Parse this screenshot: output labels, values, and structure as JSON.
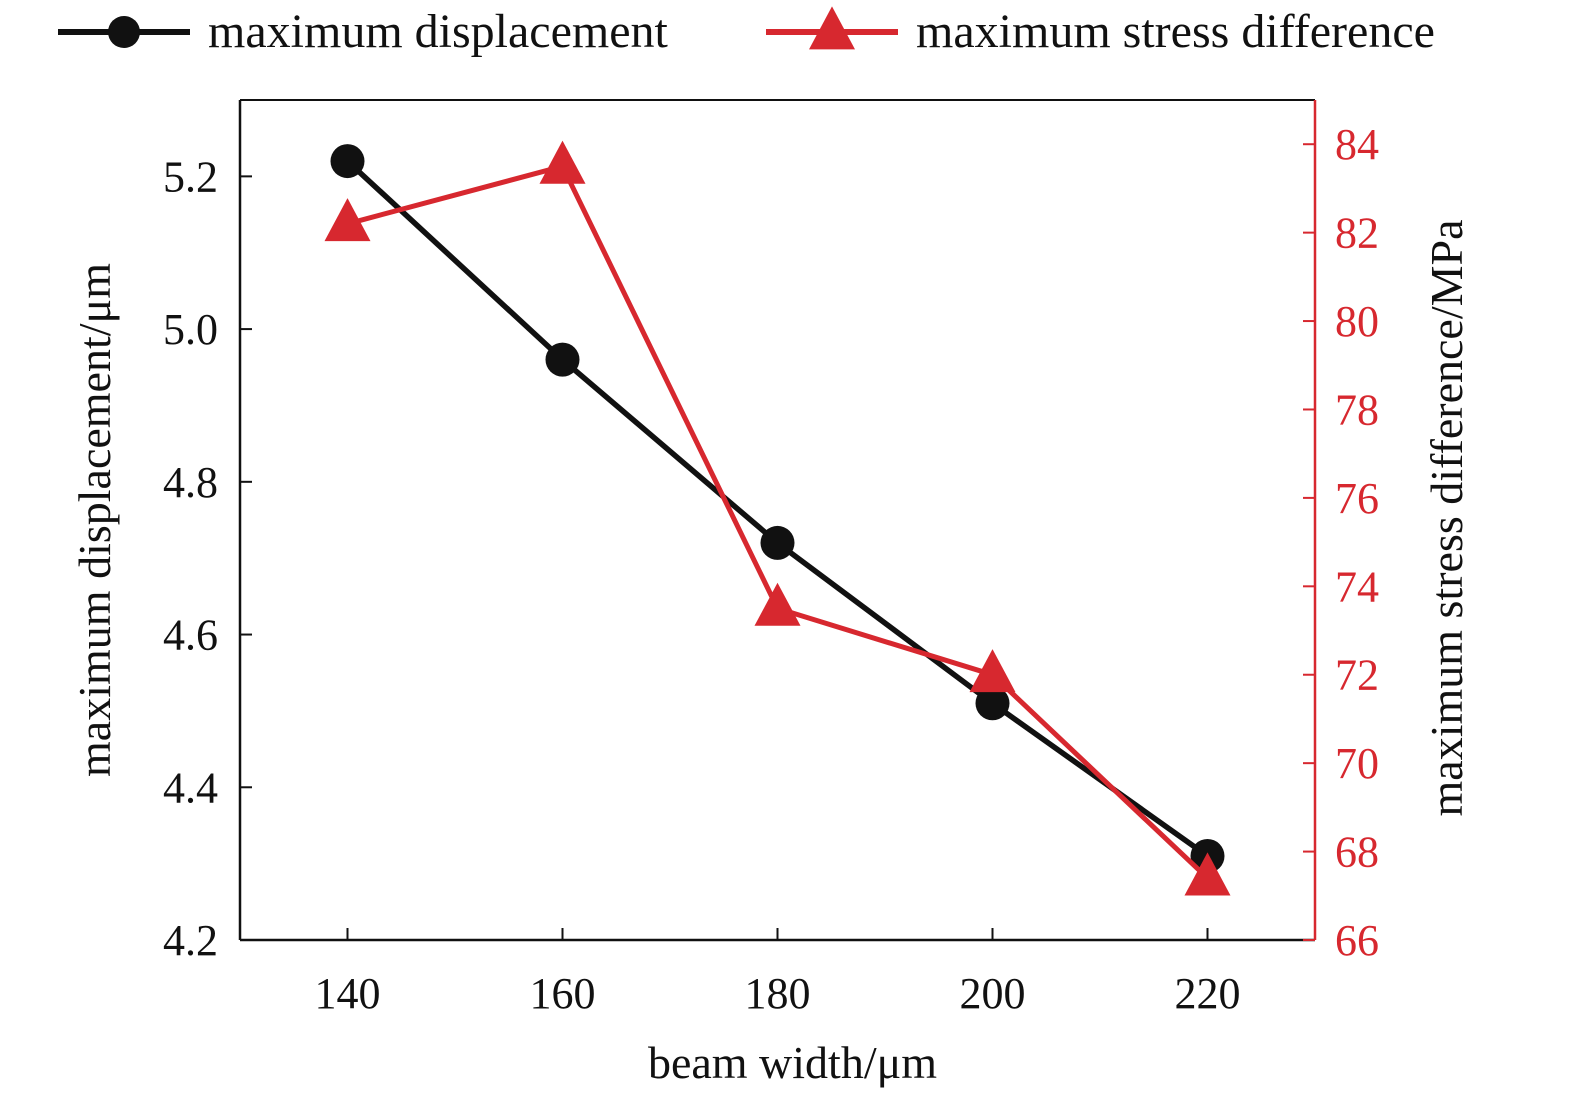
{
  "chart_data": {
    "type": "line",
    "x": [
      140,
      160,
      180,
      200,
      220
    ],
    "xlabel": "beam width/μm",
    "xlim": [
      130,
      230
    ],
    "xticks": [
      140,
      160,
      180,
      200,
      220
    ],
    "ylabel_left": "maximum displacement/μm",
    "ylim_left": [
      4.2,
      5.3
    ],
    "yticks_left": [
      "4.2",
      "4.4",
      "4.6",
      "4.8",
      "5.0",
      "5.2"
    ],
    "ylabel_right": "maximum stress difference/MPa",
    "ylim_right": [
      66,
      85
    ],
    "yticks_right": [
      "66",
      "68",
      "70",
      "72",
      "74",
      "76",
      "78",
      "80",
      "82",
      "84"
    ],
    "right_axis_color": "#d7282f",
    "grid": false,
    "legend_position": "top",
    "series": [
      {
        "name": "maximum displacement",
        "axis": "left",
        "color": "#111111",
        "marker": "circle",
        "values": [
          5.22,
          4.96,
          4.72,
          4.51,
          4.31
        ]
      },
      {
        "name": "maximum stress difference",
        "axis": "right",
        "color": "#d7282f",
        "marker": "triangle",
        "values": [
          82.2,
          83.5,
          73.5,
          72.0,
          67.4
        ]
      }
    ]
  }
}
